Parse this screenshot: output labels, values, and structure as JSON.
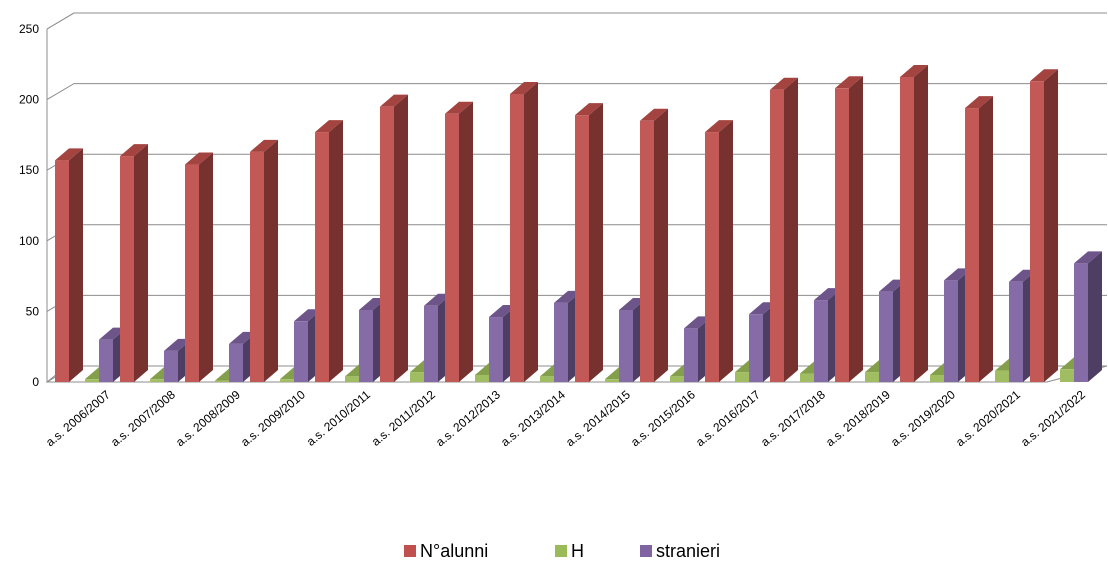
{
  "chart_data": {
    "type": "bar",
    "title": "",
    "xlabel": "",
    "ylabel": "",
    "ylim": [
      0,
      250
    ],
    "yticks": [
      0,
      50,
      100,
      150,
      200,
      250
    ],
    "grid": true,
    "legend_position": "bottom",
    "categories": [
      "a.s. 2006/2007",
      "a.s. 2007/2008",
      "a.s. 2008/2009",
      "a.s. 2009/2010",
      "a.s. 2010/2011",
      "a.s. 2011/2012",
      "a.s. 2012/2013",
      "a.s. 2013/2014",
      "a.s. 2014/2015",
      "a.s. 2015/2016",
      "a.s. 2016/2017",
      "a.s. 2017/2018",
      "a.s. 2018/2019",
      "a.s. 2019/2020",
      "a.s. 2020/2021",
      "a.s. 2021/2022"
    ],
    "series": [
      {
        "name": "N°alunni",
        "color": "#c0504d",
        "values": [
          157,
          160,
          154,
          163,
          177,
          195,
          190,
          204,
          189,
          185,
          177,
          207,
          208,
          216,
          194,
          213
        ]
      },
      {
        "name": "H",
        "color": "#9bbb59",
        "values": [
          2,
          2,
          1,
          2,
          4,
          7,
          5,
          4,
          2,
          4,
          7,
          6,
          7,
          5,
          8,
          9
        ]
      },
      {
        "name": "stranieri",
        "color": "#8064a2",
        "values": [
          30,
          22,
          27,
          43,
          51,
          54,
          46,
          56,
          51,
          38,
          48,
          58,
          64,
          72,
          71,
          84
        ]
      }
    ]
  }
}
